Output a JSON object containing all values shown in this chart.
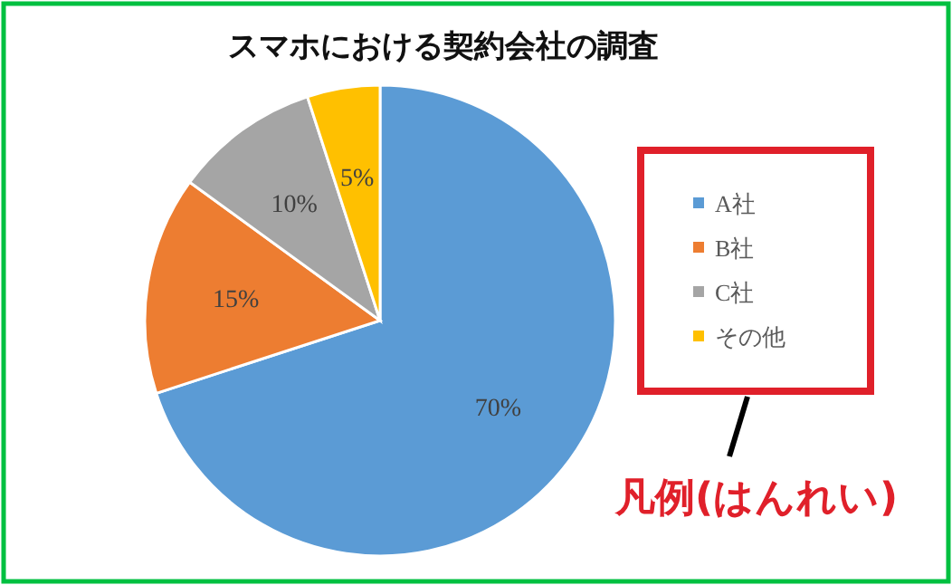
{
  "chart_data": {
    "type": "pie",
    "title": "スマホにおける契約会社の調査",
    "categories": [
      "A社",
      "B社",
      "C社",
      "その他"
    ],
    "values": [
      70,
      15,
      10,
      5
    ],
    "colors": [
      "#5b9bd5",
      "#ed7d31",
      "#a5a5a5",
      "#ffc000"
    ],
    "value_labels": [
      "70%",
      "15%",
      "10%",
      "5%"
    ],
    "legend": "right",
    "annotations": [
      "凡例(はんれい)"
    ]
  }
}
